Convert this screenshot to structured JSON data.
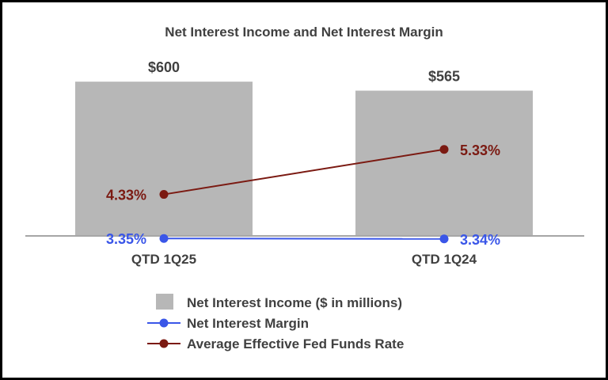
{
  "chart_data": {
    "type": "bar+line",
    "title": "Net Interest Income and Net Interest Margin",
    "categories": [
      "QTD 1Q25",
      "QTD 1Q24"
    ],
    "bars": {
      "name": "Net Interest Income ($ in millions)",
      "values": [
        600,
        565
      ],
      "labels": [
        "$600",
        "$565"
      ],
      "color": "#b7b7b7"
    },
    "lines": [
      {
        "name": "Net Interest Margin",
        "values": [
          3.35,
          3.34
        ],
        "labels": [
          "3.35%",
          "3.34%"
        ],
        "color": "#3a56e8"
      },
      {
        "name": "Average Effective Fed Funds Rate",
        "values": [
          4.33,
          5.33
        ],
        "labels": [
          "4.33%",
          "5.33%"
        ],
        "color": "#7b1a12"
      }
    ],
    "bar_axis_max": 650,
    "line_axis_range": [
      0,
      7
    ],
    "legend_position": "bottom",
    "axis_line_color": "#a6a6a6",
    "text_color": "#404040"
  }
}
